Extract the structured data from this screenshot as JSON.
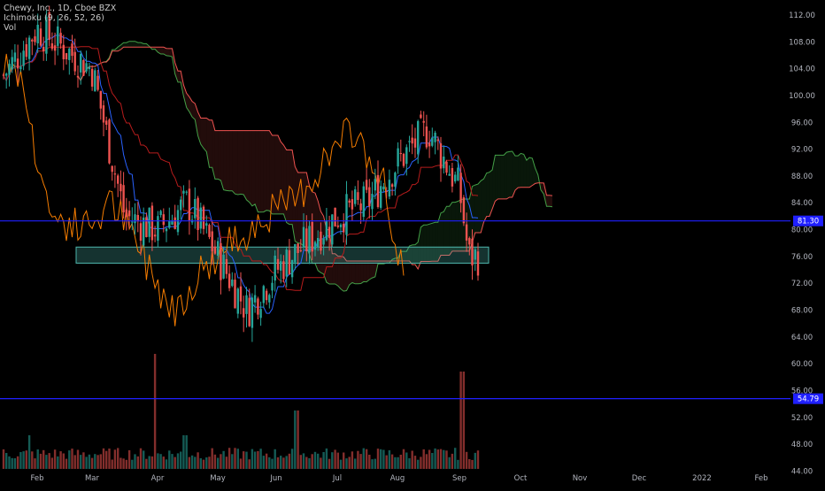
{
  "legend": {
    "symbol_line": "Chewy, Inc., 1D, Cboe BZX",
    "indicator_line": "Ichimoku (9, 26, 52, 26)",
    "volume_line": "Vol"
  },
  "price_axis": {
    "ticks": [
      "112.00",
      "108.00",
      "104.00",
      "100.00",
      "96.00",
      "92.00",
      "88.00",
      "84.00",
      "80.00",
      "76.00",
      "72.00",
      "68.00",
      "64.00",
      "60.00",
      "56.00",
      "52.00",
      "48.00",
      "44.00"
    ],
    "badges": [
      {
        "label": "81.30",
        "value": 81.3,
        "color": "#1f1fff"
      },
      {
        "label": "54.79",
        "value": 54.79,
        "color": "#1f1fff"
      }
    ]
  },
  "time_axis": {
    "labels": [
      "Feb",
      "Mar",
      "Apr",
      "May",
      "Jun",
      "Jul",
      "Aug",
      "Sep",
      "Oct",
      "Nov",
      "Dec",
      "2022",
      "Feb"
    ]
  },
  "colors": {
    "up": "#26a69a",
    "down": "#ef5350",
    "conversion": "#2962ff",
    "base": "#b71c1c",
    "lagging": "#f57c00",
    "span_a": "#43a047",
    "span_b": "#ef5350",
    "hline": "#1f1fff",
    "zone": "#4db6ac"
  },
  "chart_data": {
    "type": "candlestick",
    "symbol": "Chewy, Inc., 1D, Cboe BZX",
    "ylim": [
      44,
      113
    ],
    "horizontal_lines": [
      81.3,
      54.79
    ],
    "support_zone": {
      "from": "Feb",
      "to": "Sep",
      "low": 75.0,
      "high": 77.4
    },
    "months": [
      "Feb",
      "Mar",
      "Apr",
      "May",
      "Jun",
      "Jul",
      "Aug",
      "Sep"
    ],
    "close_path": [
      {
        "m": "Feb",
        "close": 110
      },
      {
        "m": "Mar",
        "close": 104
      },
      {
        "m": "Mar",
        "close": 82
      },
      {
        "m": "Apr",
        "close": 80
      },
      {
        "m": "Apr",
        "close": 84
      },
      {
        "m": "May",
        "close": 76
      },
      {
        "m": "May",
        "close": 68
      },
      {
        "m": "Jun",
        "close": 74
      },
      {
        "m": "Jun",
        "close": 78
      },
      {
        "m": "Jul",
        "close": 82
      },
      {
        "m": "Jul",
        "close": 84
      },
      {
        "m": "Aug",
        "close": 90
      },
      {
        "m": "Aug",
        "close": 95
      },
      {
        "m": "Sep",
        "close": 86
      },
      {
        "m": "Sep",
        "close": 76
      }
    ],
    "volume_peaks": [
      {
        "m": "Apr",
        "level": "spike"
      },
      {
        "m": "Jun",
        "level": "high"
      },
      {
        "m": "Sep",
        "level": "spike"
      }
    ]
  }
}
